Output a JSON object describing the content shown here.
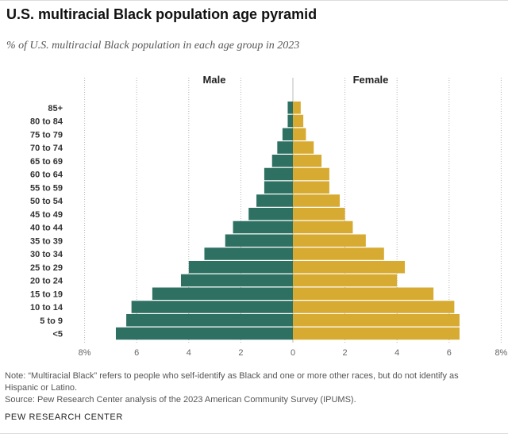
{
  "header": {
    "title": "U.S. multiracial Black population age pyramid",
    "subtitle": "% of U.S. multiracial Black population in each age group in 2023"
  },
  "chart_data": {
    "type": "bar",
    "orientation": "horizontal-pyramid",
    "categories": [
      "85+",
      "80 to 84",
      "75 to 79",
      "70 to 74",
      "65 to 69",
      "60 to 64",
      "55 to 59",
      "50 to 54",
      "45 to 49",
      "40 to 44",
      "35 to 39",
      "30 to 34",
      "25 to 29",
      "20 to 24",
      "15 to 19",
      "10 to 14",
      "5 to 9",
      "<5"
    ],
    "series": [
      {
        "name": "Male",
        "color": "#2e7062",
        "values": [
          0.2,
          0.2,
          0.4,
          0.6,
          0.8,
          1.1,
          1.1,
          1.4,
          1.7,
          2.3,
          2.6,
          3.4,
          4.0,
          4.3,
          5.4,
          6.2,
          6.4,
          6.8
        ]
      },
      {
        "name": "Female",
        "color": "#d7aa31",
        "values": [
          0.3,
          0.4,
          0.5,
          0.8,
          1.1,
          1.4,
          1.4,
          1.8,
          2.0,
          2.3,
          2.8,
          3.5,
          4.3,
          4.0,
          5.4,
          6.2,
          6.4,
          6.4
        ]
      }
    ],
    "xlim": [
      -8,
      8
    ],
    "ticks": [
      {
        "value": -8,
        "label": "8%"
      },
      {
        "value": -6,
        "label": "6"
      },
      {
        "value": -4,
        "label": "4"
      },
      {
        "value": -2,
        "label": "2"
      },
      {
        "value": 0,
        "label": "0"
      },
      {
        "value": 2,
        "label": "2"
      },
      {
        "value": 4,
        "label": "4"
      },
      {
        "value": 6,
        "label": "6"
      },
      {
        "value": 8,
        "label": "8%"
      }
    ],
    "grid": true
  },
  "footer": {
    "note_line1": "Note: “Multiracial Black” refers to people who self-identify as Black and one or more other races, but do not identify as",
    "note_line2": "Hispanic or Latino.",
    "source": "Source: Pew Research Center analysis of the 2023 American Community Survey (IPUMS).",
    "brand": "PEW RESEARCH CENTER"
  }
}
